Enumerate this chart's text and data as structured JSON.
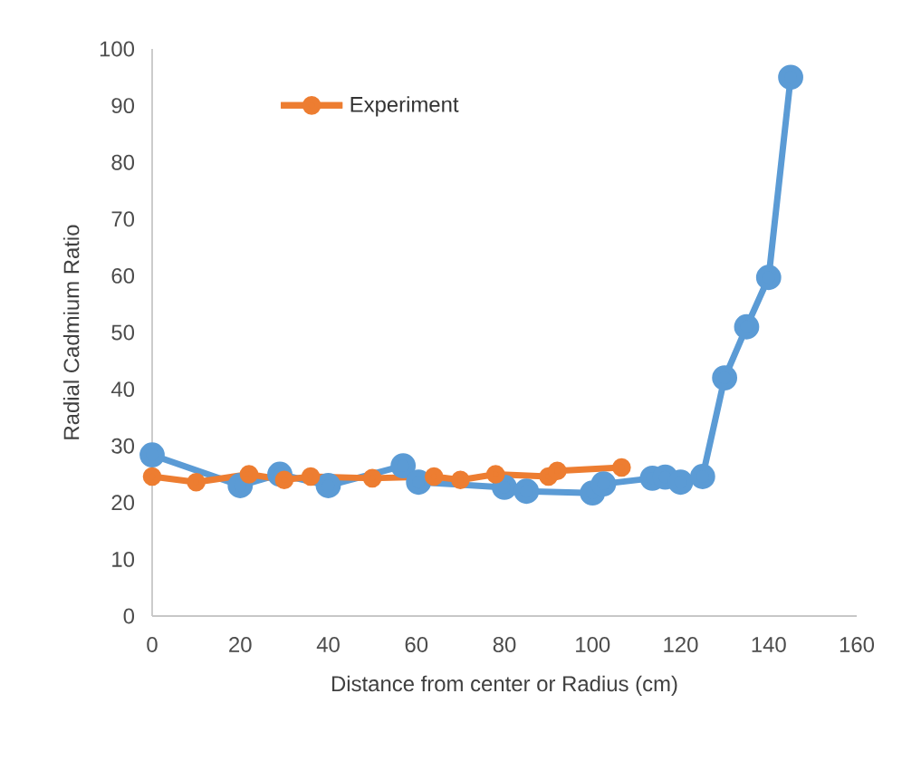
{
  "chart_data": {
    "type": "line",
    "xlabel": "Distance from center or Radius (cm)",
    "ylabel": "Radial Cadmium Ratio",
    "xlim": [
      0,
      160
    ],
    "ylim": [
      0,
      100
    ],
    "xticks": [
      0,
      20,
      40,
      60,
      80,
      100,
      120,
      140,
      160
    ],
    "yticks": [
      0,
      10,
      20,
      30,
      40,
      50,
      60,
      70,
      80,
      90,
      100
    ],
    "grid": false,
    "legend": "top left",
    "marker": "circle",
    "series": [
      {
        "color": "#5b9bd5",
        "x": [
          0,
          20,
          29,
          40,
          57,
          60.5,
          80,
          85,
          100,
          102.5,
          113.6,
          116.5,
          120,
          125,
          130,
          135,
          140,
          145
        ],
        "values": [
          28.4,
          23,
          25,
          23,
          26.5,
          23.6,
          22.7,
          22,
          21.7,
          23.3,
          24.3,
          24.5,
          23.6,
          24.6,
          42,
          51,
          59.7,
          95
        ]
      },
      {
        "name": "Experiment",
        "color": "#ed7d31",
        "x": [
          0,
          10,
          22,
          30,
          36,
          50,
          64,
          70,
          78,
          90,
          92,
          106.6
        ],
        "values": [
          24.6,
          23.6,
          25,
          24,
          24.6,
          24.3,
          24.6,
          24,
          25,
          24.6,
          25.6,
          26.2
        ]
      }
    ]
  }
}
